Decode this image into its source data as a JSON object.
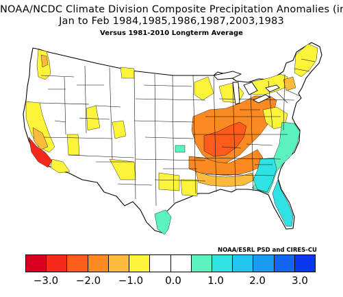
{
  "title_line1": "NOAA/NCDC Climate Division Composite Precipitation Anomalies (in)",
  "title_line2": "Jan to Feb  1984,1985,1986,1987,2003,1983",
  "title_line3": "Versus 1981-2010 Longterm Average",
  "credit": "NOAA/ESRL PSD and CIRES-CU",
  "legend": {
    "swatches": [
      "#d8001e",
      "#f52a1a",
      "#fc5b1c",
      "#fb8a22",
      "#fcbb3c",
      "#fcf43a",
      "#ffffff",
      "#ffffff",
      "#5cf2c0",
      "#30e2e4",
      "#23c4ee",
      "#1a9bf2",
      "#1565f3",
      "#0a38f0"
    ],
    "ticks": [
      "−3.0",
      "−2.0",
      "−1.0",
      "0.0",
      "1.0",
      "2.0",
      "3.0"
    ]
  },
  "map_colors": {
    "dry_strong": "#f52a1a",
    "dry_orange": "#fb8a22",
    "dry_light_orange": "#fcbb3c",
    "dry_yellow": "#fcf43a",
    "wet_teal": "#5cf2c0",
    "wet_cyan": "#30e2e4",
    "neutral": "#ffffff"
  }
}
